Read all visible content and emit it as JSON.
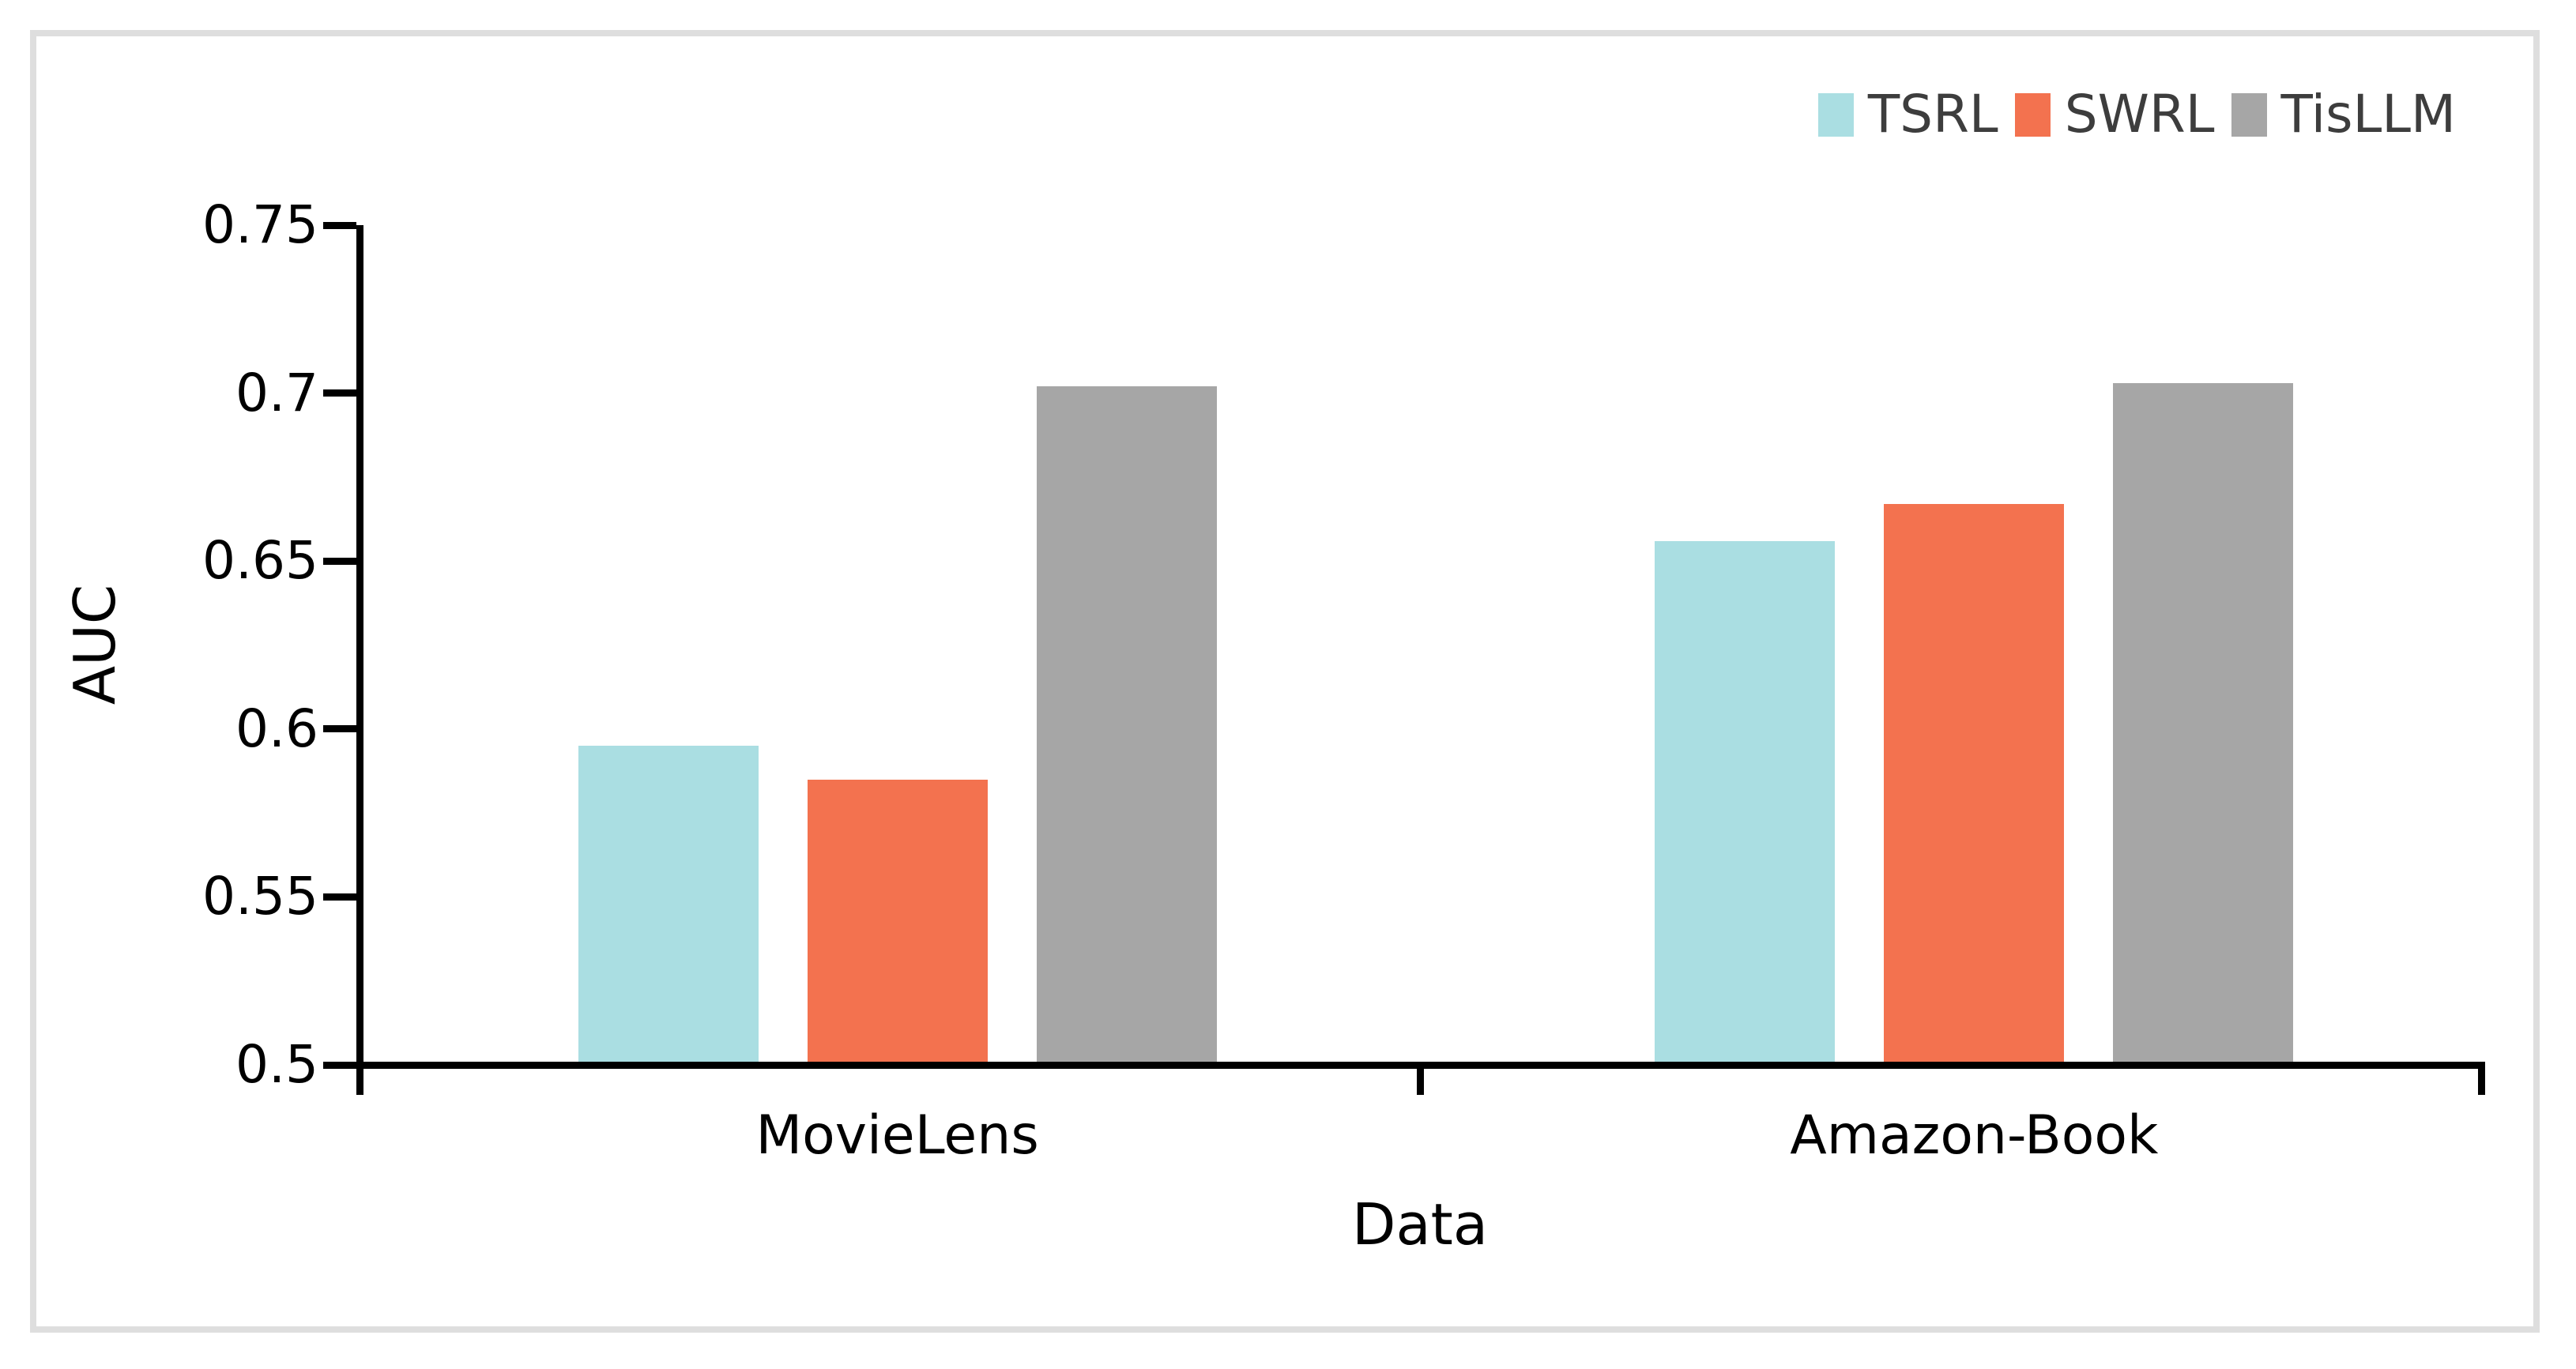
{
  "chart_data": {
    "type": "bar",
    "title": "",
    "categories": [
      "MovieLens",
      "Amazon-Book"
    ],
    "series": [
      {
        "name": "TSRL",
        "color": "#AADEE2",
        "values": [
          0.595,
          0.656
        ]
      },
      {
        "name": "SWRL",
        "color": "#F3724F",
        "values": [
          0.585,
          0.667
        ]
      },
      {
        "name": "TisLLM",
        "color": "#A6A6A6",
        "values": [
          0.702,
          0.703
        ]
      }
    ],
    "xlabel": "Data",
    "ylabel": "AUC",
    "ylim": [
      0.5,
      0.75
    ],
    "yticks": [
      "0.5",
      "0.55",
      "0.6",
      "0.65",
      "0.7",
      "0.75"
    ],
    "grid": false,
    "legend_position": "top-right",
    "axis_color": "#000000",
    "legend_text_color": "#3d3d3d",
    "frame_color": "#dedede",
    "background_color": "#ffffff"
  }
}
